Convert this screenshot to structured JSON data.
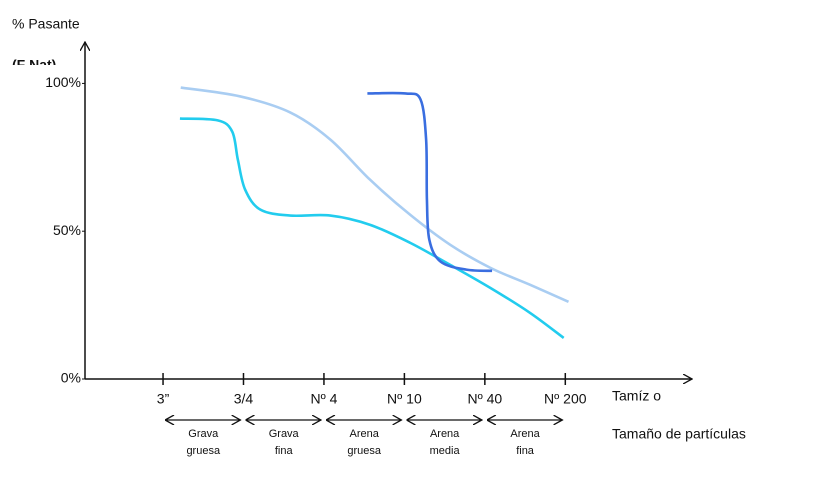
{
  "chart_data": {
    "type": "line",
    "y_label": "% Pasante",
    "y_label_sub": "(F Nat)",
    "x_label": "Tamíz o",
    "x_label_sub": "Tamaño de partículas",
    "xlim": [
      -0.97,
      6.55
    ],
    "ylim": [
      0,
      113
    ],
    "xticks": [
      {
        "value": 0,
        "label": "3”"
      },
      {
        "value": 1,
        "label": "3/4"
      },
      {
        "value": 2,
        "label": "Nº 4"
      },
      {
        "value": 3,
        "label": "Nº 10"
      },
      {
        "value": 4,
        "label": "Nº 40"
      },
      {
        "value": 5,
        "label": "Nº 200"
      }
    ],
    "yticks": [
      {
        "value": 0,
        "label": "0%"
      },
      {
        "value": 50,
        "label": "50%"
      },
      {
        "value": 100,
        "label": "100%"
      }
    ],
    "bands": [
      [
        "Grava",
        "gruesa"
      ],
      [
        "Grava",
        "fina"
      ],
      [
        "Arena",
        "gruesa"
      ],
      [
        "Arena",
        "media"
      ],
      [
        "Arena",
        "fina"
      ]
    ],
    "series": [
      {
        "color": "#a9cdf2",
        "x": [
          0.22,
          0.96,
          1.58,
          2.08,
          2.57,
          3.07,
          3.57,
          4.07,
          4.56,
          5.04
        ],
        "values": [
          98.6,
          95.6,
          90.2,
          81.0,
          67.5,
          55.6,
          45.4,
          37.6,
          31.9,
          26.1
        ]
      },
      {
        "color": "#22ccee",
        "x": [
          0.21,
          0.68,
          0.86,
          0.93,
          1.02,
          1.21,
          1.58,
          2.08,
          2.57,
          3.07,
          3.57,
          4.07,
          4.56,
          4.98
        ],
        "values": [
          88.1,
          87.5,
          83.7,
          74.2,
          64.1,
          57.3,
          55.3,
          55.3,
          52.2,
          46.1,
          38.6,
          30.8,
          22.4,
          13.9
        ]
      },
      {
        "color": "#3a6ee0",
        "x": [
          2.54,
          3.01,
          3.2,
          3.27,
          3.28,
          3.31,
          3.45,
          3.77,
          4.09
        ],
        "values": [
          96.6,
          96.6,
          94.6,
          81.0,
          60.7,
          47.1,
          39.7,
          37.0,
          36.6
        ]
      }
    ]
  }
}
